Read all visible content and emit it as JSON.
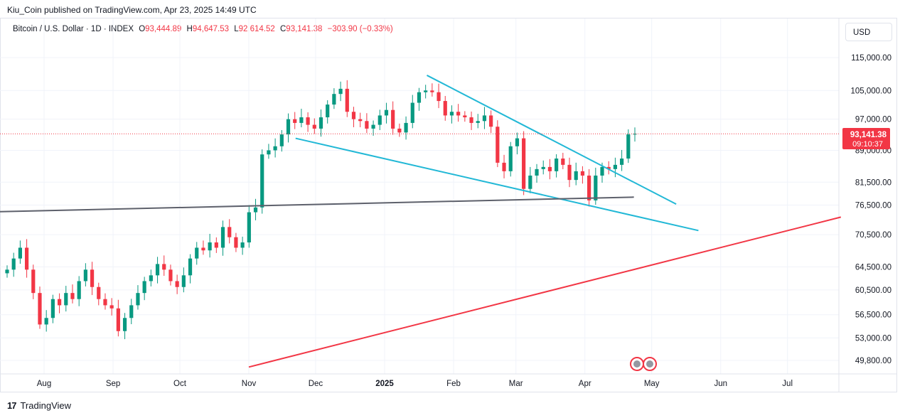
{
  "header": {
    "published": "Kiu_Coin published on TradingView.com, Apr 23, 2025 14:49 UTC"
  },
  "legend": {
    "symbol": "Bitcoin / U.S. Dollar · 1D · INDEX",
    "o_label": "O",
    "o_value": "93,444.89",
    "h_label": "H",
    "h_value": "94,647.53",
    "l_label": "L",
    "l_value": "92,614.52",
    "c_label": "C",
    "c_value": "93,141.38",
    "change": "−303.90 (−0.33%)"
  },
  "currency_button": "USD",
  "price_label": {
    "price": "93,141.38",
    "countdown": "09:10:37"
  },
  "footer": {
    "brand": "TradingView"
  },
  "colors": {
    "up": "#089981",
    "down": "#f23645",
    "trend_cyan": "#22b8d6",
    "support_gray": "#5d606b",
    "trend_red": "#f23645"
  },
  "chart_data": {
    "type": "candlestick",
    "y_scale": "log",
    "y_ticks": [
      "115,000.00",
      "105,000.00",
      "97,000.00",
      "89,000.00",
      "81,500.00",
      "76,500.00",
      "70,500.00",
      "64,500.00",
      "60,500.00",
      "56,500.00",
      "53,000.00",
      "49,800.00"
    ],
    "x_ticks": [
      "Aug",
      "Sep",
      "Oct",
      "Nov",
      "Dec",
      "2025",
      "Feb",
      "Mar",
      "Apr",
      "May",
      "Jun",
      "Jul"
    ],
    "last_price": 93141.38,
    "closes_approx": [
      64000,
      66000,
      68000,
      64000,
      60000,
      55000,
      56000,
      59000,
      58000,
      60000,
      59000,
      62000,
      64000,
      61000,
      59000,
      58000,
      57500,
      54000,
      56000,
      58000,
      60000,
      62000,
      63000,
      65000,
      64000,
      62000,
      61000,
      63000,
      66000,
      68000,
      67500,
      69000,
      68000,
      72000,
      70000,
      68000,
      69000,
      75000,
      76000,
      88000,
      89000,
      90000,
      93000,
      97000,
      96000,
      97500,
      95500,
      94500,
      97500,
      101000,
      104000,
      105500,
      99000,
      97000,
      96500,
      94500,
      95500,
      98000,
      99500,
      94500,
      93500,
      96000,
      101500,
      104500,
      105000,
      104500,
      102000,
      98000,
      99000,
      98000,
      97500,
      96000,
      96500,
      98000,
      95000,
      86000,
      84000,
      90000,
      92000,
      80000,
      83000,
      84500,
      85000,
      84000,
      87000,
      85500,
      82000,
      84000,
      83000,
      77500,
      83000,
      85000,
      84500,
      85500,
      87000,
      93000,
      93141
    ],
    "annotations": [
      {
        "name": "descending-trendline-upper",
        "from": [
          "2025-01-20",
          109500
        ],
        "to": [
          "2025-05-12",
          76700
        ]
      },
      {
        "name": "descending-trendline-lower",
        "from": [
          "2024-11-22",
          92000
        ],
        "to": [
          "2025-05-22",
          71300
        ]
      },
      {
        "name": "horizontal-support",
        "from": [
          "2024-07-01",
          75000
        ],
        "to": [
          "2025-04-23",
          78200
        ]
      },
      {
        "name": "rising-trendline",
        "from": [
          "2024-11-01",
          48900
        ],
        "to": [
          "2025-07-25",
          74000
        ]
      }
    ]
  }
}
